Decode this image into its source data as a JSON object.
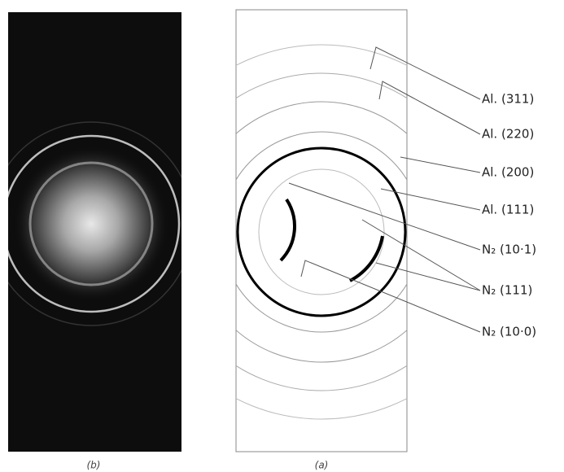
{
  "labels": [
    "Al. (311)",
    "Al. (220)",
    "Al. (200)",
    "Al. (111)",
    "N₂ (10·1)",
    "N₂ (111)",
    "N₂ (10·0)"
  ],
  "captions": {
    "left": "(b)",
    "right": "(a)"
  }
}
